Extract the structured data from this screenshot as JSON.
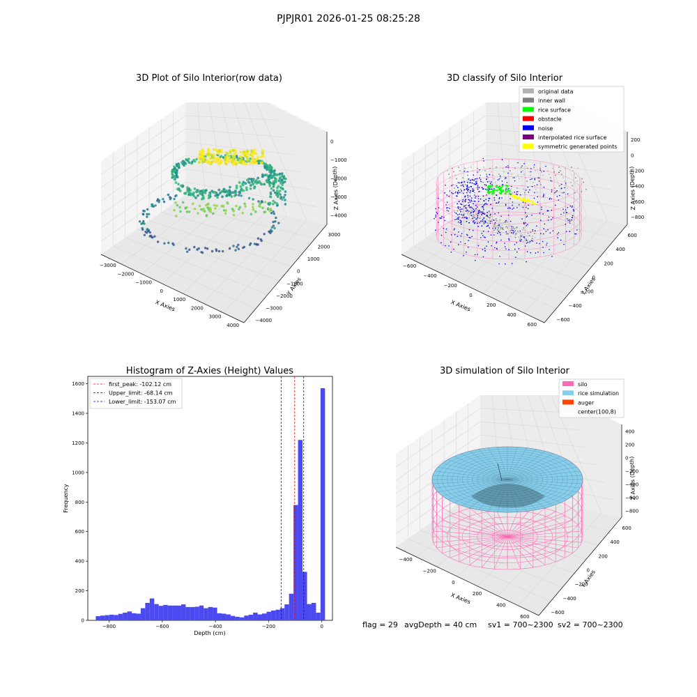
{
  "figure": {
    "suptitle": "PJPJR01 2026-01-25 08:25:28"
  },
  "colors": {
    "histogram_bar": "#4a4af0",
    "first_peak_line": "#ff0000",
    "limit_line": "#0000ff",
    "silo": "#ff69b4",
    "rice_simulation": "#87ceeb",
    "auger": "#ff4500",
    "noise": "#0000ff",
    "rice_surface": "#00ff00",
    "symmetric": "#ffff00",
    "original": "#b3b3b3",
    "inner_wall": "#808080",
    "obstacle": "#ff0000",
    "interpolated": "#800080"
  },
  "chart_data": [
    {
      "id": "raw",
      "type": "scatter",
      "projection": "3d",
      "title": "3D Plot of Silo Interior(row data)",
      "xlabel": "X Axies",
      "ylabel": "Y Axies",
      "zlabel": "Z Axies (Depth)",
      "x_ticks": [
        "−3000",
        "−2000",
        "−1000",
        "0",
        "1000",
        "2000",
        "3000",
        "4000"
      ],
      "y_ticks": [
        "−4000",
        "−3000",
        "−2000",
        "−1000",
        "0",
        "1000",
        "2000",
        "3000"
      ],
      "z_ticks": [
        "−4000",
        "−3000",
        "−2000",
        "−1000",
        "0"
      ],
      "xlim": [
        -3500,
        4500
      ],
      "ylim": [
        -4500,
        3500
      ],
      "zlim": [
        -4500,
        200
      ],
      "colormap": "viridis"
    },
    {
      "id": "classify",
      "type": "scatter",
      "projection": "3d",
      "title": "3D classify of Silo Interior",
      "xlabel": "X Axies",
      "ylabel": "Y Axies",
      "zlabel": "Z Axies (Depth)",
      "x_ticks": [
        "−600",
        "−400",
        "−200",
        "0",
        "200",
        "400",
        "600"
      ],
      "y_ticks": [
        "−600",
        "−400",
        "−200",
        "0",
        "200",
        "400",
        "600"
      ],
      "z_ticks": [
        "−800",
        "−600",
        "−400",
        "−200",
        "0",
        "200"
      ],
      "xlim": [
        -650,
        700
      ],
      "ylim": [
        -650,
        700
      ],
      "zlim": [
        -900,
        250
      ],
      "legend_position": "top-right",
      "legend": [
        {
          "label": "original data",
          "color": "#b3b3b3"
        },
        {
          "label": "inner wall",
          "color": "#808080"
        },
        {
          "label": "rice surface",
          "color": "#00ff00"
        },
        {
          "label": "obstacle",
          "color": "#ff0000"
        },
        {
          "label": "noise",
          "color": "#0000ff"
        },
        {
          "label": "interpolated rice surface",
          "color": "#800080"
        },
        {
          "label": "symmetric generated points",
          "color": "#ffff00"
        }
      ]
    },
    {
      "id": "histogram",
      "type": "bar",
      "title": "Histogram of Z-Axies (Height) Values",
      "xlabel": "Depth (cm)",
      "ylabel": "Frequency",
      "xlim": [
        -880,
        40
      ],
      "ylim": [
        0,
        1650
      ],
      "x_ticks": [
        -800,
        -600,
        -400,
        -200,
        0
      ],
      "x_tick_labels": [
        "−800",
        "−600",
        "−400",
        "−200",
        "0"
      ],
      "y_ticks": [
        0,
        200,
        400,
        600,
        800,
        1000,
        1200,
        1400,
        1600
      ],
      "bin_start": -850,
      "bin_width": 16.9,
      "values": [
        28,
        32,
        35,
        38,
        36,
        44,
        52,
        60,
        48,
        45,
        82,
        118,
        148,
        110,
        98,
        104,
        100,
        100,
        100,
        108,
        90,
        90,
        92,
        100,
        82,
        90,
        86,
        48,
        45,
        40,
        30,
        24,
        20,
        32,
        38,
        52,
        40,
        46,
        58,
        66,
        72,
        82,
        108,
        180,
        780,
        1220,
        328,
        110,
        118,
        52,
        1570
      ],
      "vlines": [
        {
          "label": "first_peak: -102.12 cm",
          "x": -102.12,
          "color": "#ff0000",
          "style": "dashed"
        },
        {
          "label": "Upper_limit: -68.14 cm",
          "x": -68.14,
          "color": "#0000ff",
          "style": "dashed"
        },
        {
          "label": "Lower_limit: -153.07 cm",
          "x": -153.07,
          "color": "#0000ff",
          "style": "dashed"
        }
      ],
      "legend_position": "top-left"
    },
    {
      "id": "simulation",
      "type": "surface",
      "projection": "3d",
      "title": "3D simulation of Silo Interior",
      "xlabel": "X Axies",
      "ylabel": "Y Axies",
      "zlabel": "Z Axies (Depth)",
      "x_ticks": [
        "−400",
        "−200",
        "0",
        "200",
        "400",
        "600"
      ],
      "y_ticks": [
        "−600",
        "−400",
        "−200",
        "0",
        "200",
        "400",
        "600"
      ],
      "z_ticks": [
        "−800",
        "−600",
        "−400",
        "−200",
        "0",
        "200",
        "400"
      ],
      "xlim": [
        -550,
        700
      ],
      "ylim": [
        -650,
        700
      ],
      "zlim": [
        -900,
        450
      ],
      "legend_position": "top-right",
      "legend": [
        {
          "label": "silo",
          "color": "#ff69b4"
        },
        {
          "label": "rice simulation",
          "color": "#87ceeb"
        },
        {
          "label": "auger",
          "color": "#ff4500"
        },
        {
          "label": "center(100,8)",
          "color": ""
        }
      ]
    }
  ],
  "status": {
    "flag": "flag = 29",
    "avg_depth": "avgDepth = 40 cm",
    "sv1": "sv1 = 700~2300",
    "sv2": "sv2 = 700~2300"
  }
}
